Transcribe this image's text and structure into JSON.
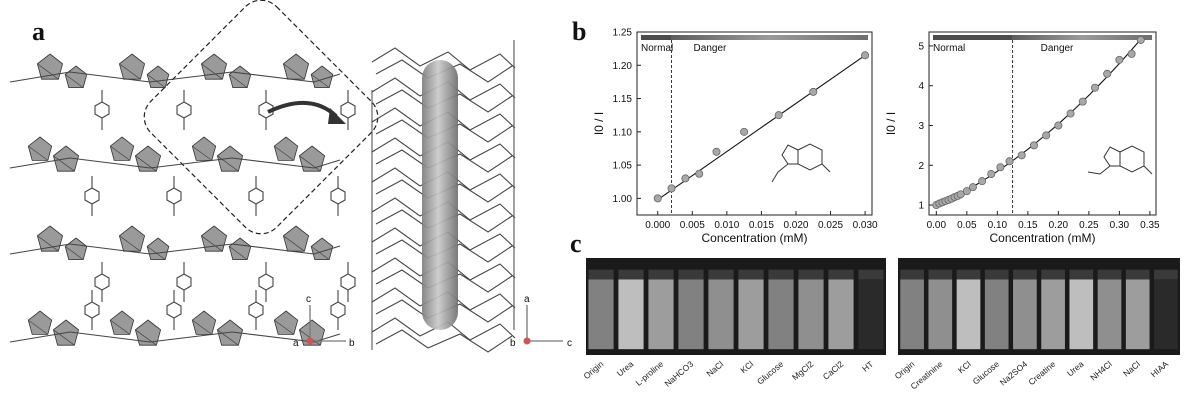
{
  "panels": {
    "a": {
      "letter": "a",
      "axes_left": {
        "up": "c",
        "left": "a",
        "right": "b"
      },
      "axes_right": {
        "up": "a",
        "left": "b",
        "right": "c"
      }
    },
    "b": {
      "letter": "b"
    },
    "c": {
      "letter": "c"
    }
  },
  "chart_data": [
    {
      "type": "line",
      "xlabel": "Concentration (mM)",
      "ylabel": "I0 / I",
      "xlim": [
        -0.003,
        0.031
      ],
      "ylim": [
        0.975,
        1.25
      ],
      "xticks": [
        "0.000",
        "0.005",
        "0.010",
        "0.015",
        "0.020",
        "0.025",
        "0.030"
      ],
      "yticks": [
        "1.00",
        "1.05",
        "1.10",
        "1.15",
        "1.20",
        "1.25"
      ],
      "threshold_x": 0.002,
      "regions": [
        "Normal",
        "Danger"
      ],
      "x": [
        0.0,
        0.002,
        0.004,
        0.006,
        0.0085,
        0.0125,
        0.0175,
        0.0225,
        0.03
      ],
      "y": [
        1.0,
        1.015,
        1.03,
        1.037,
        1.07,
        1.1,
        1.125,
        1.16,
        1.215
      ],
      "fit": {
        "x0": 0.0,
        "y0": 0.998,
        "x1": 0.03,
        "y1": 1.215
      }
    },
    {
      "type": "line",
      "xlabel": "Concentration (mM)",
      "ylabel": "I0 / I",
      "xlim": [
        -0.012,
        0.36
      ],
      "ylim": [
        0.75,
        5.35
      ],
      "xticks": [
        "0.00",
        "0.05",
        "0.10",
        "0.15",
        "0.20",
        "0.25",
        "0.30",
        "0.35"
      ],
      "yticks": [
        "1",
        "2",
        "3",
        "4",
        "5"
      ],
      "threshold_x": 0.125,
      "regions": [
        "Normal",
        "Danger"
      ],
      "x": [
        0.0,
        0.005,
        0.01,
        0.015,
        0.02,
        0.025,
        0.03,
        0.035,
        0.04,
        0.05,
        0.06,
        0.075,
        0.09,
        0.105,
        0.12,
        0.14,
        0.16,
        0.18,
        0.2,
        0.22,
        0.24,
        0.26,
        0.28,
        0.3,
        0.32,
        0.335
      ],
      "y": [
        1.0,
        1.04,
        1.07,
        1.1,
        1.13,
        1.16,
        1.2,
        1.23,
        1.27,
        1.35,
        1.45,
        1.6,
        1.78,
        1.95,
        2.1,
        2.25,
        2.5,
        2.75,
        3.0,
        3.3,
        3.6,
        3.95,
        4.3,
        4.65,
        4.8,
        5.15
      ],
      "fit_type": "quadratic"
    }
  ],
  "vials_left": {
    "labels": [
      "Origin",
      "Urea",
      "L-proline",
      "NaHCO3",
      "NaCl",
      "KCl",
      "Glucose",
      "MgCl2",
      "CaCl2",
      "HT"
    ]
  },
  "vials_right": {
    "labels": [
      "Origin",
      "Creatinine",
      "KCl",
      "Glucose",
      "Na2SO4",
      "Creatine",
      "Urea",
      "NH4Cl",
      "NaCl",
      "HIAA"
    ]
  },
  "colors": {
    "panel_bg": "#1a1a1a",
    "vial_bright": "#c7c7c7",
    "band": "#777777",
    "marker": "#a8a8a8"
  }
}
